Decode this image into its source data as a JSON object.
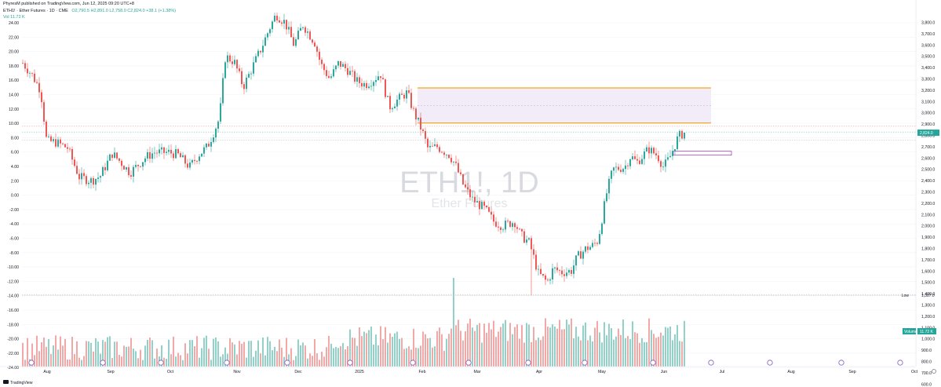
{
  "header": {
    "publisher": "PhyresM published on TradingView.com, Jun 12, 2025 09:20 UTC+8",
    "symbol_line": "ETH1! · Ether Futures · 1D · CME",
    "ohlc": "O2,790.5 H2,891.0 L2,758.0 C2,824.0 +38.1 (+1.38%)",
    "ohlc_color": "#26a69a",
    "volume_line": "Vol 11.72 K"
  },
  "watermark": {
    "symbol": "ETH1!, 1D",
    "name": "Ether Futures"
  },
  "footer": {
    "logo_text": "TradingView",
    "logo_icon": "tradingview-logo-icon",
    "settings_icon": "gear-icon"
  },
  "colors": {
    "up": "#26a69a",
    "down": "#ef5350",
    "up_vol": "#8fd0c7",
    "down_vol": "#f3a6a6",
    "zone_border": "#f5a623",
    "zone_fill": "#ede7f6",
    "grid": "#f0f3fa"
  },
  "chart_data": {
    "type": "candlestick",
    "title": "ETH1! · Ether Futures · 1D · CME",
    "price_axis": {
      "ylim": [
        600,
        3900
      ],
      "ticks": [
        "3,800.0",
        "3,700.0",
        "3,600.0",
        "3,500.0",
        "3,400.0",
        "3,300.0",
        "3,200.0",
        "3,100.0",
        "3,000.0",
        "2,900.0",
        "2,800.0",
        "2,700.0",
        "2,600.0",
        "2,500.0",
        "2,400.0",
        "2,300.0",
        "2,200.0",
        "2,100.0",
        "2,000.0",
        "1,900.0",
        "1,800.0",
        "1,700.0",
        "1,600.0",
        "1,500.0",
        "1,400.0",
        "1,300.0",
        "1,200.0",
        "1,100.0",
        "1,000.0",
        "900.0",
        "800.0",
        "700.0",
        "600.0"
      ]
    },
    "left_axis": {
      "ticks": [
        "24.00",
        "22.00",
        "20.00",
        "18.00",
        "16.00",
        "14.00",
        "12.00",
        "10.00",
        "8.00",
        "6.00",
        "4.00",
        "2.00",
        "0.00",
        "-2.00",
        "-4.00",
        "-6.00",
        "-8.00",
        "-10.00",
        "-12.00",
        "-14.00",
        "-16.00",
        "-18.00",
        "-20.00",
        "-22.00",
        "-24.00"
      ]
    },
    "x_axis": {
      "labels": [
        "Aug",
        "Sep",
        "Oct",
        "Nov",
        "Dec",
        "2025",
        "Feb",
        "Mar",
        "Apr",
        "May",
        "Jun",
        "Jul",
        "Aug",
        "Sep",
        "Oct"
      ]
    },
    "last_price": {
      "label": "2,824.0",
      "value": 2824.0
    },
    "low_marker": {
      "label": "Low",
      "value_label": "1,387.0",
      "value": 1387
    },
    "volume_badge": {
      "label": "Volume",
      "value_label": "11.72 K"
    },
    "zone": {
      "top": 3220,
      "bottom": 2910,
      "mid": 3065
    },
    "small_box": {
      "top": 2660,
      "bottom": 2625
    },
    "anchors": [
      [
        0,
        3440
      ],
      [
        6,
        3340
      ],
      [
        12,
        3200
      ],
      [
        16,
        2750
      ],
      [
        22,
        2740
      ],
      [
        30,
        2690
      ],
      [
        38,
        2430
      ],
      [
        46,
        2400
      ],
      [
        52,
        2440
      ],
      [
        60,
        2640
      ],
      [
        66,
        2560
      ],
      [
        72,
        2470
      ],
      [
        82,
        2600
      ],
      [
        88,
        2650
      ],
      [
        98,
        2650
      ],
      [
        104,
        2630
      ],
      [
        112,
        2520
      ],
      [
        118,
        2630
      ],
      [
        124,
        2700
      ],
      [
        132,
        2950
      ],
      [
        136,
        3500
      ],
      [
        142,
        3450
      ],
      [
        148,
        3230
      ],
      [
        154,
        3400
      ],
      [
        160,
        3570
      ],
      [
        166,
        3760
      ],
      [
        170,
        3870
      ],
      [
        176,
        3800
      ],
      [
        182,
        3600
      ],
      [
        188,
        3780
      ],
      [
        196,
        3620
      ],
      [
        200,
        3430
      ],
      [
        206,
        3300
      ],
      [
        212,
        3440
      ],
      [
        218,
        3380
      ],
      [
        224,
        3280
      ],
      [
        230,
        3250
      ],
      [
        236,
        3300
      ],
      [
        240,
        3350
      ],
      [
        246,
        3050
      ],
      [
        252,
        3120
      ],
      [
        258,
        3180
      ],
      [
        262,
        3020
      ],
      [
        268,
        2840
      ],
      [
        272,
        2680
      ],
      [
        278,
        2700
      ],
      [
        286,
        2630
      ],
      [
        290,
        2550
      ],
      [
        296,
        2350
      ],
      [
        302,
        2230
      ],
      [
        310,
        2150
      ],
      [
        316,
        2040
      ],
      [
        322,
        2000
      ],
      [
        330,
        2040
      ],
      [
        334,
        1920
      ],
      [
        340,
        1850
      ],
      [
        346,
        1580
      ],
      [
        352,
        1500
      ],
      [
        356,
        1620
      ],
      [
        362,
        1590
      ],
      [
        368,
        1600
      ],
      [
        372,
        1720
      ],
      [
        378,
        1800
      ],
      [
        382,
        1820
      ],
      [
        386,
        1870
      ],
      [
        392,
        2300
      ],
      [
        396,
        2500
      ],
      [
        404,
        2520
      ],
      [
        408,
        2620
      ],
      [
        412,
        2560
      ],
      [
        416,
        2620
      ],
      [
        420,
        2680
      ],
      [
        426,
        2620
      ],
      [
        430,
        2520
      ],
      [
        434,
        2600
      ],
      [
        440,
        2790
      ],
      [
        444,
        2824
      ]
    ],
    "count": 445
  }
}
